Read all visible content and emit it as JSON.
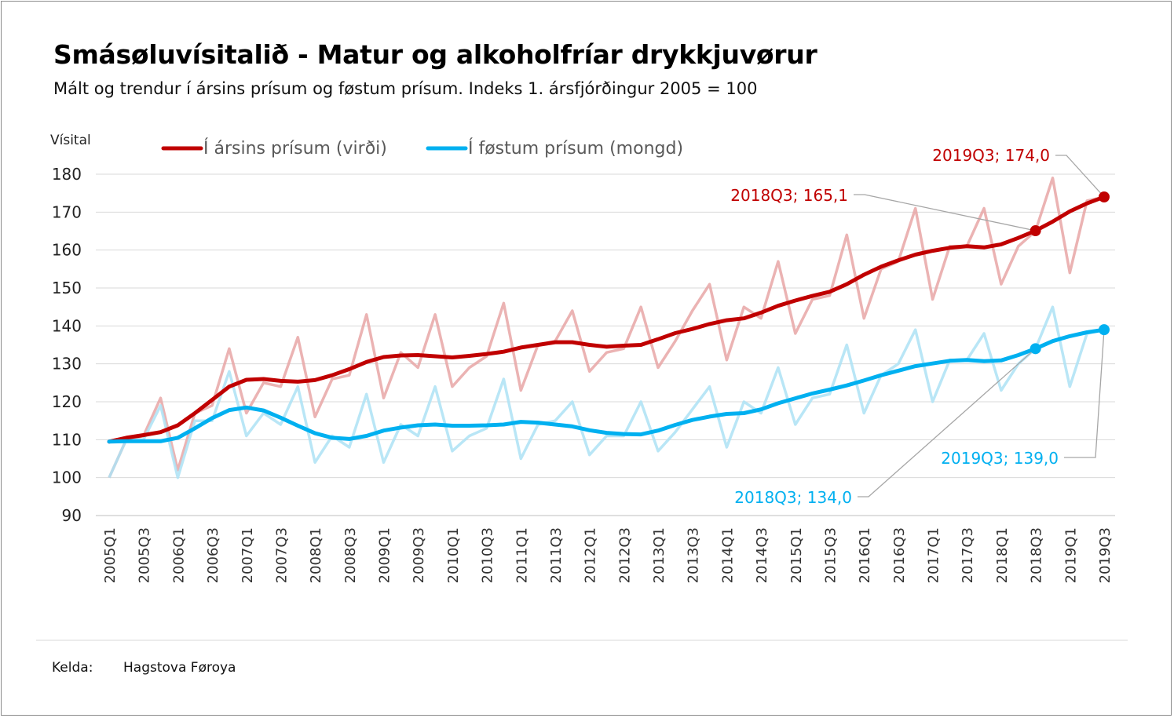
{
  "title": "Smásøluvísitalið - Matur og alkoholfríar drykkjuvørur",
  "subtitle": "Mált og trendur í ársins prísum og føstum prísum. Indeks 1. ársfjórðingur 2005 = 100",
  "source": {
    "label": "Kelda:",
    "value": "Hagstova Føroya"
  },
  "chart_data": {
    "type": "line",
    "ylabel": "Vísital",
    "ylim": [
      90,
      180
    ],
    "yticks": [
      90,
      100,
      110,
      120,
      130,
      140,
      150,
      160,
      170,
      180
    ],
    "x": [
      "2005Q1",
      "2005Q2",
      "2005Q3",
      "2005Q4",
      "2006Q1",
      "2006Q2",
      "2006Q3",
      "2006Q4",
      "2007Q1",
      "2007Q2",
      "2007Q3",
      "2007Q4",
      "2008Q1",
      "2008Q2",
      "2008Q3",
      "2008Q4",
      "2009Q1",
      "2009Q2",
      "2009Q3",
      "2009Q4",
      "2010Q1",
      "2010Q2",
      "2010Q3",
      "2010Q4",
      "2011Q1",
      "2011Q2",
      "2011Q3",
      "2011Q4",
      "2012Q1",
      "2012Q2",
      "2012Q3",
      "2012Q4",
      "2013Q1",
      "2013Q2",
      "2013Q3",
      "2013Q4",
      "2014Q1",
      "2014Q2",
      "2014Q3",
      "2014Q4",
      "2015Q1",
      "2015Q2",
      "2015Q3",
      "2015Q4",
      "2016Q1",
      "2016Q2",
      "2016Q3",
      "2016Q4",
      "2017Q1",
      "2017Q2",
      "2017Q3",
      "2017Q4",
      "2018Q1",
      "2018Q2",
      "2018Q3",
      "2018Q4",
      "2019Q1",
      "2019Q2",
      "2019Q3"
    ],
    "xtick_labels": [
      "2005Q1",
      "2005Q3",
      "2006Q1",
      "2006Q3",
      "2007Q1",
      "2007Q3",
      "2008Q1",
      "2008Q3",
      "2009Q1",
      "2009Q3",
      "2010Q1",
      "2010Q3",
      "2011Q1",
      "2011Q3",
      "2012Q1",
      "2012Q3",
      "2013Q1",
      "2013Q3",
      "2014Q1",
      "2014Q3",
      "2015Q1",
      "2015Q3",
      "2016Q1",
      "2016Q3",
      "2017Q1",
      "2017Q3",
      "2018Q1",
      "2018Q3",
      "2019Q1",
      "2019Q3"
    ],
    "grid": true,
    "legend_position": "top",
    "series": [
      {
        "name": "Í ársins prísum (virði)",
        "color": "#c00000",
        "raw_color": "#e8a6a6",
        "raw": [
          100,
          110,
          111,
          121,
          102,
          117,
          119,
          134,
          117,
          125,
          124,
          137,
          116,
          126,
          127,
          143,
          121,
          133,
          129,
          143,
          124,
          129,
          132,
          146,
          123,
          135,
          136,
          144,
          128,
          133,
          134,
          145,
          129,
          136,
          144,
          151,
          131,
          145,
          142,
          157,
          138,
          147,
          148,
          164,
          142,
          155,
          157,
          171,
          147,
          161,
          161,
          171,
          151,
          161,
          165,
          179,
          154,
          173,
          174
        ],
        "trend": [
          109.5,
          110.5,
          111.2,
          112,
          113.8,
          117,
          120.5,
          124,
          125.8,
          126,
          125.5,
          125.3,
          125.7,
          127,
          128.6,
          130.5,
          131.8,
          132.2,
          132.3,
          132,
          131.7,
          132.1,
          132.6,
          133.2,
          134.3,
          135,
          135.7,
          135.7,
          135,
          134.5,
          134.8,
          135,
          136.5,
          138.1,
          139.2,
          140.5,
          141.5,
          142,
          143.5,
          145.3,
          146.7,
          147.9,
          149,
          151,
          153.5,
          155.6,
          157.3,
          158.8,
          159.8,
          160.6,
          161,
          160.7,
          161.5,
          163.2,
          165.1,
          167.5,
          170.2,
          172.3,
          174
        ]
      },
      {
        "name": "Í føstum prísum (mongd)",
        "color": "#00b0f0",
        "raw_color": "#ade2f5",
        "raw": [
          100,
          110,
          110,
          119,
          100,
          115,
          115,
          128,
          111,
          117,
          114,
          124,
          104,
          111,
          108,
          122,
          104,
          114,
          111,
          124,
          107,
          111,
          113,
          126,
          105,
          114,
          115,
          120,
          106,
          111,
          111,
          120,
          107,
          112,
          118,
          124,
          108,
          120,
          117,
          129,
          114,
          121,
          122,
          135,
          117,
          127,
          130,
          139,
          120,
          131,
          131,
          138,
          123,
          130,
          134,
          145,
          124,
          138,
          139
        ],
        "trend": [
          109.5,
          109.6,
          109.6,
          109.6,
          110.5,
          113,
          115.7,
          117.8,
          118.5,
          117.7,
          115.8,
          113.7,
          111.7,
          110.5,
          110.2,
          111,
          112.4,
          113.2,
          113.8,
          114,
          113.7,
          113.7,
          113.8,
          114,
          114.7,
          114.5,
          114,
          113.5,
          112.5,
          111.8,
          111.5,
          111.4,
          112.4,
          113.9,
          115.2,
          116.1,
          116.8,
          117,
          118,
          119.6,
          120.9,
          122.2,
          123.2,
          124.3,
          125.6,
          127,
          128.2,
          129.4,
          130.1,
          130.8,
          131,
          130.7,
          130.9,
          132.3,
          134,
          136,
          137.3,
          138.3,
          139
        ]
      }
    ],
    "annotations": [
      {
        "text": "2019Q3; 174,0",
        "series": 0,
        "x": "2019Q3",
        "y": 174.0
      },
      {
        "text": "2018Q3; 165,1",
        "series": 0,
        "x": "2018Q3",
        "y": 165.1
      },
      {
        "text": "2019Q3; 139,0",
        "series": 1,
        "x": "2019Q3",
        "y": 139.0
      },
      {
        "text": "2018Q3; 134,0",
        "series": 1,
        "x": "2018Q3",
        "y": 134.0
      }
    ]
  }
}
